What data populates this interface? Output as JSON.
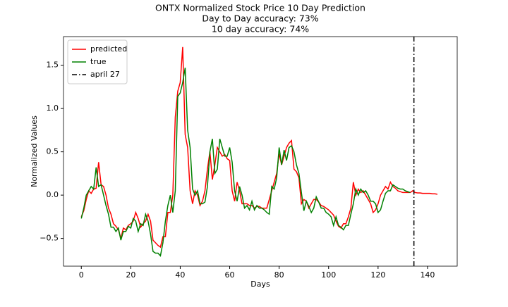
{
  "chart_data": {
    "type": "line",
    "title": "ONTX Normalized Stock Price 10 Day Prediction",
    "subtitle": [
      "Day to Day accuracy: 73%",
      "10 day accuracy: 74%"
    ],
    "xlabel": "Days",
    "ylabel": "Normalized Values",
    "x": [
      0,
      1,
      2,
      3,
      4,
      5,
      6,
      7,
      8,
      9,
      10,
      11,
      12,
      13,
      14,
      15,
      16,
      17,
      18,
      19,
      20,
      21,
      22,
      23,
      24,
      25,
      26,
      27,
      28,
      29,
      30,
      31,
      32,
      33,
      34,
      35,
      36,
      37,
      38,
      39,
      40,
      41,
      42,
      43,
      44,
      45,
      46,
      47,
      48,
      49,
      50,
      51,
      52,
      53,
      54,
      55,
      56,
      57,
      58,
      59,
      60,
      61,
      62,
      63,
      64,
      65,
      66,
      67,
      68,
      69,
      70,
      71,
      72,
      73,
      74,
      75,
      76,
      77,
      78,
      79,
      80,
      81,
      82,
      83,
      84,
      85,
      86,
      87,
      88,
      89,
      90,
      91,
      92,
      93,
      94,
      95,
      96,
      97,
      98,
      99,
      100,
      101,
      102,
      103,
      104,
      105,
      106,
      107,
      108,
      109,
      110,
      111,
      112,
      113,
      114,
      115,
      116,
      117,
      118,
      119,
      120,
      121,
      122,
      123,
      124,
      125,
      126,
      127,
      128,
      129,
      130,
      131,
      132,
      133,
      134,
      135,
      136,
      137,
      138,
      139,
      140,
      141,
      142,
      143,
      144
    ],
    "series": [
      {
        "name": "predicted",
        "color": "#ff0000",
        "values": [
          -0.25,
          -0.18,
          -0.05,
          0.05,
          0.02,
          0.07,
          0.08,
          0.38,
          0.12,
          0.1,
          0.0,
          -0.15,
          -0.22,
          -0.33,
          -0.36,
          -0.4,
          -0.5,
          -0.38,
          -0.4,
          -0.35,
          -0.33,
          -0.3,
          -0.2,
          -0.27,
          -0.37,
          -0.33,
          -0.3,
          -0.22,
          -0.3,
          -0.52,
          -0.55,
          -0.58,
          -0.6,
          -0.48,
          -0.48,
          -0.2,
          -0.2,
          0.0,
          0.9,
          1.2,
          1.3,
          1.71,
          0.7,
          0.55,
          0.05,
          -0.1,
          0.05,
          0.0,
          -0.12,
          -0.07,
          0.05,
          0.3,
          0.5,
          0.18,
          0.35,
          0.55,
          0.5,
          0.45,
          0.47,
          0.42,
          0.4,
          0.05,
          -0.07,
          0.15,
          0.05,
          -0.1,
          -0.1,
          -0.1,
          -0.12,
          -0.12,
          -0.15,
          -0.13,
          -0.13,
          -0.15,
          -0.15,
          -0.15,
          -0.05,
          0.05,
          0.15,
          0.25,
          0.48,
          0.35,
          0.45,
          0.55,
          0.6,
          0.63,
          0.3,
          0.27,
          0.2,
          -0.1,
          -0.05,
          -0.07,
          -0.15,
          -0.1,
          -0.05,
          -0.05,
          -0.08,
          -0.12,
          -0.13,
          -0.15,
          -0.17,
          -0.2,
          -0.23,
          -0.3,
          -0.36,
          -0.38,
          -0.33,
          -0.33,
          -0.25,
          -0.15,
          0.15,
          0.0,
          0.07,
          0.03,
          0.05,
          0.0,
          -0.05,
          -0.1,
          -0.2,
          -0.17,
          -0.1,
          0.0,
          0.05,
          0.1,
          0.07,
          0.15,
          0.1,
          0.08,
          0.05,
          0.04,
          0.03,
          0.03,
          0.03,
          0.03,
          0.05,
          0.03,
          0.025,
          0.025,
          0.02,
          0.02,
          0.02,
          0.02,
          0.015,
          0.015,
          0.01
        ]
      },
      {
        "name": "true",
        "color": "#008000",
        "values": [
          -0.27,
          -0.15,
          0.0,
          0.05,
          0.1,
          0.07,
          0.32,
          0.1,
          0.12,
          0.0,
          -0.12,
          -0.22,
          -0.37,
          -0.37,
          -0.42,
          -0.38,
          -0.52,
          -0.42,
          -0.42,
          -0.36,
          -0.38,
          -0.27,
          -0.3,
          -0.42,
          -0.33,
          -0.35,
          -0.22,
          -0.3,
          -0.45,
          -0.65,
          -0.67,
          -0.67,
          -0.7,
          -0.55,
          -0.3,
          -0.12,
          0.0,
          -0.2,
          0.05,
          1.14,
          1.18,
          1.3,
          1.47,
          0.75,
          0.55,
          0.07,
          0.0,
          0.05,
          -0.1,
          -0.1,
          -0.08,
          0.1,
          0.5,
          0.65,
          0.25,
          0.3,
          0.65,
          0.55,
          0.45,
          0.45,
          0.55,
          0.38,
          0.05,
          -0.07,
          0.1,
          0.0,
          -0.15,
          -0.12,
          -0.17,
          -0.07,
          -0.17,
          -0.12,
          -0.15,
          -0.15,
          -0.17,
          -0.2,
          -0.22,
          0.1,
          0.07,
          0.2,
          0.55,
          0.35,
          0.52,
          0.4,
          0.55,
          0.57,
          0.5,
          0.35,
          0.25,
          0.03,
          -0.18,
          -0.07,
          -0.13,
          -0.2,
          -0.15,
          -0.02,
          -0.08,
          -0.15,
          -0.15,
          -0.2,
          -0.22,
          -0.25,
          -0.35,
          -0.25,
          -0.35,
          -0.37,
          -0.4,
          -0.35,
          -0.35,
          -0.22,
          -0.1,
          0.07,
          0.0,
          0.07,
          0.03,
          0.05,
          0.0,
          -0.07,
          -0.07,
          -0.1,
          -0.2,
          -0.17,
          -0.07,
          0.02,
          0.05,
          0.05,
          0.12,
          0.1,
          0.08,
          0.07,
          0.07,
          0.05,
          0.04,
          0.03,
          null,
          null,
          null,
          null,
          null,
          null,
          null,
          null,
          null,
          null,
          null
        ]
      }
    ],
    "vlines": [
      {
        "name": "april 27",
        "x": 134.5,
        "color": "#000000",
        "style": "dashdot"
      }
    ],
    "xlim": [
      -7.2,
      152
    ],
    "ylim": [
      -0.82,
      1.83
    ],
    "xticks": [
      0,
      20,
      40,
      60,
      80,
      100,
      120,
      140
    ],
    "yticks": [
      {
        "value": -0.5,
        "label": "−0.5"
      },
      {
        "value": 0.0,
        "label": "0.0"
      },
      0.5,
      {
        "value": 1.0,
        "label": "1.0"
      },
      1.5
    ],
    "grid": false,
    "legend": "upper left"
  }
}
